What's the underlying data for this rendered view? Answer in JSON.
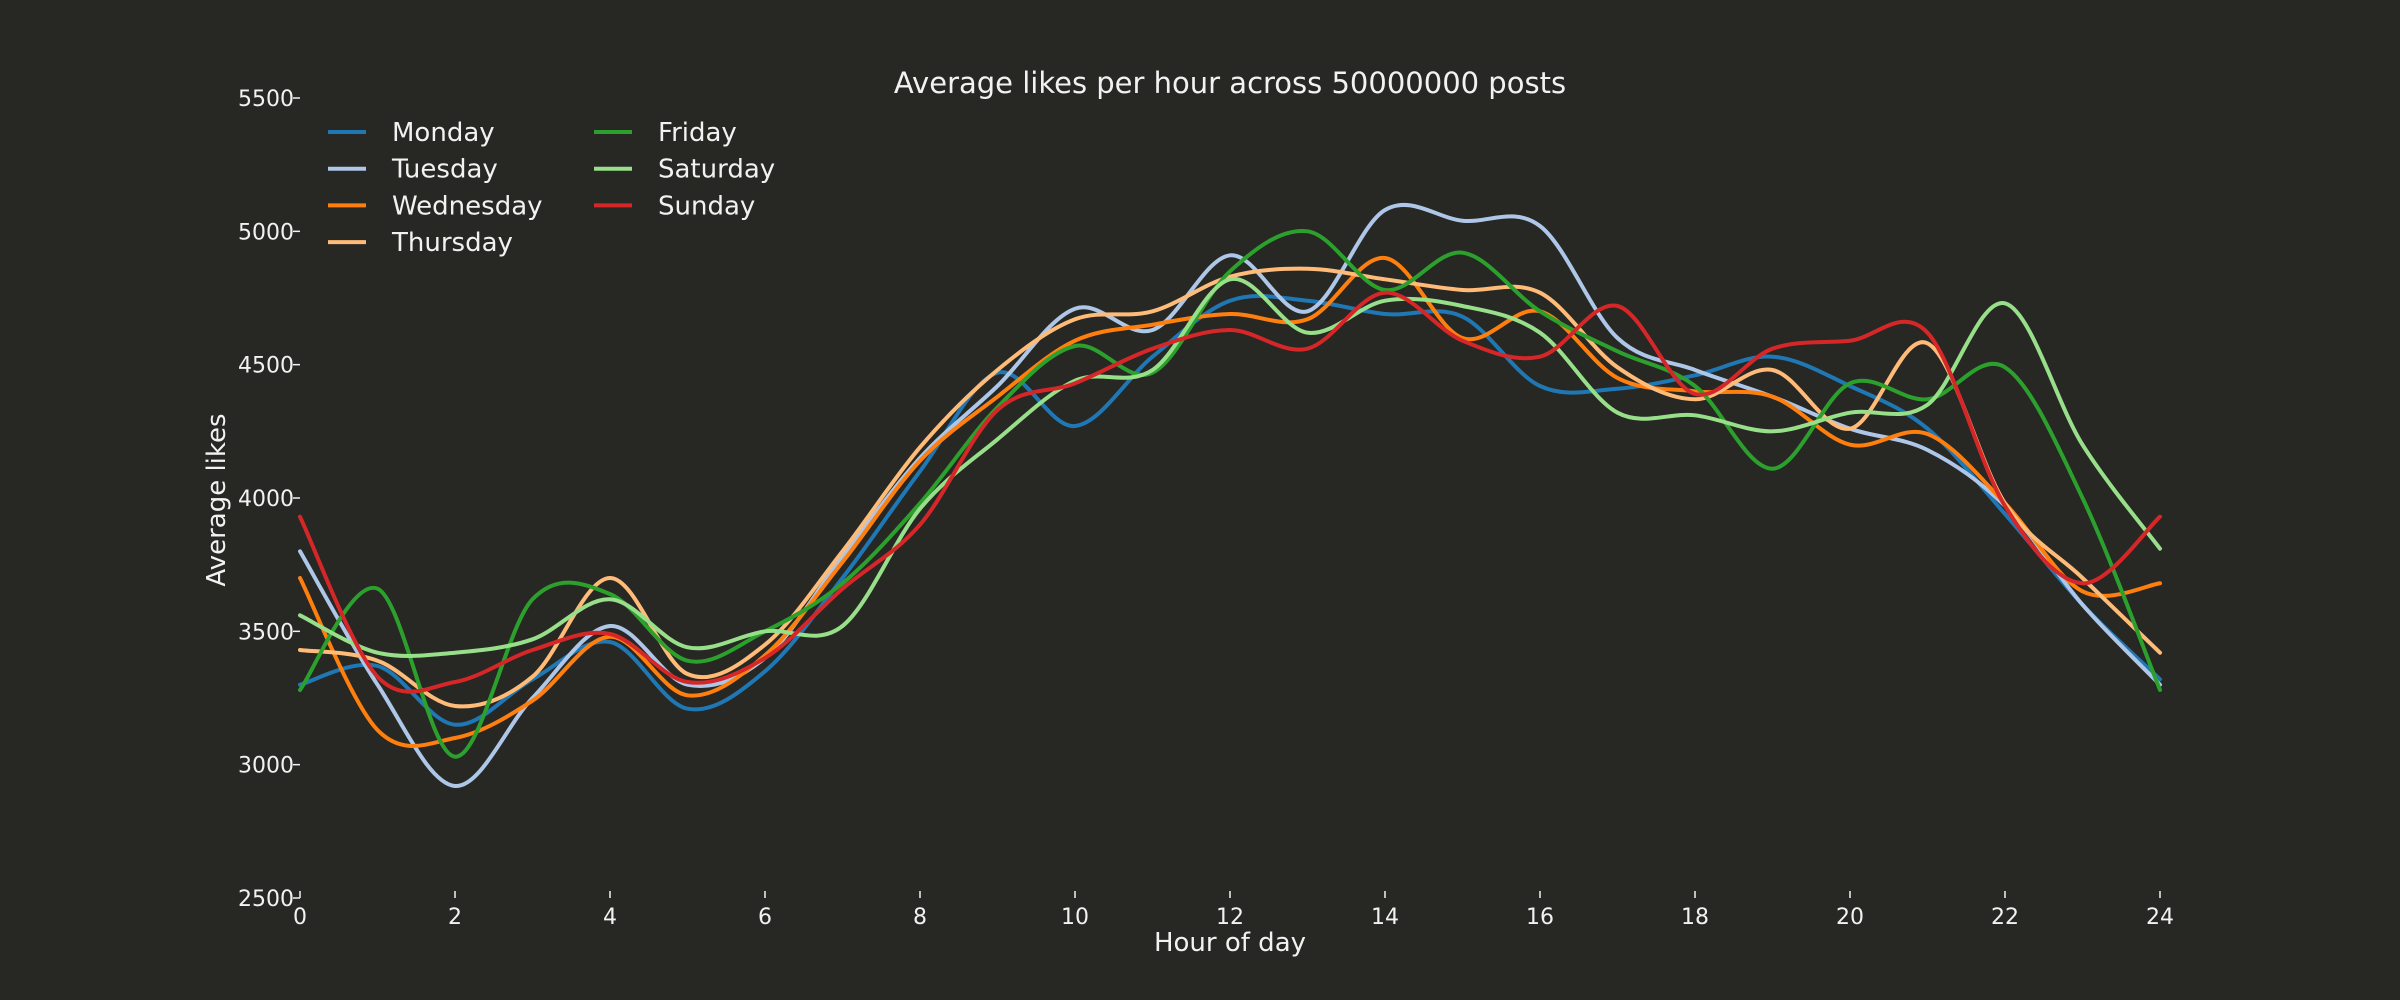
{
  "chart_data": {
    "type": "line",
    "title": "Average likes per hour across 50000000 posts",
    "xlabel": "Hour of day",
    "ylabel": "Average likes",
    "xlim": [
      0,
      24
    ],
    "ylim": [
      2500,
      5500
    ],
    "x_ticks": [
      0,
      2,
      4,
      6,
      8,
      10,
      12,
      14,
      16,
      18,
      20,
      22,
      24
    ],
    "y_ticks": [
      2500,
      3000,
      3500,
      4000,
      4500,
      5000,
      5500
    ],
    "grid": false,
    "legend_position": "top-left",
    "legend_columns": 2,
    "x": [
      0,
      1,
      2,
      3,
      4,
      5,
      6,
      7,
      8,
      9,
      10,
      11,
      12,
      13,
      14,
      15,
      16,
      17,
      18,
      19,
      20,
      21,
      22,
      23,
      24
    ],
    "series": [
      {
        "name": "Monday",
        "color": "#1f77b4",
        "values": [
          3300,
          3370,
          3150,
          3320,
          3460,
          3210,
          3350,
          3700,
          4100,
          4470,
          4270,
          4530,
          4740,
          4740,
          4690,
          4680,
          4420,
          4410,
          4460,
          4530,
          4420,
          4260,
          3940,
          3600,
          3320
        ]
      },
      {
        "name": "Tuesday",
        "color": "#aec7e8",
        "values": [
          3800,
          3300,
          2920,
          3250,
          3520,
          3300,
          3400,
          3780,
          4150,
          4420,
          4710,
          4630,
          4910,
          4700,
          5080,
          5040,
          5020,
          4600,
          4480,
          4380,
          4260,
          4180,
          3970,
          3600,
          3300
        ]
      },
      {
        "name": "Wednesday",
        "color": "#ff7f0e",
        "values": [
          3700,
          3130,
          3100,
          3240,
          3480,
          3260,
          3410,
          3760,
          4140,
          4380,
          4590,
          4650,
          4690,
          4670,
          4900,
          4600,
          4700,
          4450,
          4400,
          4380,
          4200,
          4240,
          3980,
          3650,
          3680
        ]
      },
      {
        "name": "Thursday",
        "color": "#ffbb78",
        "values": [
          3430,
          3390,
          3220,
          3330,
          3700,
          3340,
          3450,
          3800,
          4190,
          4480,
          4670,
          4700,
          4830,
          4860,
          4820,
          4780,
          4770,
          4490,
          4370,
          4480,
          4260,
          4580,
          3980,
          3700,
          3420
        ]
      },
      {
        "name": "Friday",
        "color": "#2ca02c",
        "values": [
          3280,
          3660,
          3030,
          3620,
          3640,
          3390,
          3500,
          3680,
          3980,
          4340,
          4570,
          4470,
          4850,
          5000,
          4780,
          4920,
          4700,
          4550,
          4420,
          4110,
          4430,
          4370,
          4490,
          4000,
          3280
        ]
      },
      {
        "name": "Saturday",
        "color": "#98df8a",
        "values": [
          3560,
          3420,
          3420,
          3470,
          3620,
          3440,
          3500,
          3520,
          3960,
          4220,
          4440,
          4480,
          4820,
          4620,
          4740,
          4720,
          4620,
          4320,
          4310,
          4250,
          4320,
          4350,
          4730,
          4200,
          3810
        ]
      },
      {
        "name": "Sunday",
        "color": "#d62728",
        "values": [
          3930,
          3330,
          3310,
          3430,
          3490,
          3310,
          3400,
          3660,
          3900,
          4330,
          4430,
          4560,
          4630,
          4560,
          4770,
          4590,
          4530,
          4720,
          4390,
          4560,
          4590,
          4620,
          3970,
          3680,
          3930
        ]
      }
    ]
  }
}
